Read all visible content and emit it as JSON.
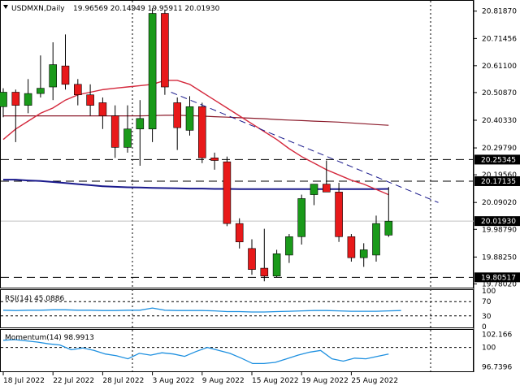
{
  "header": {
    "symbol": "USDMXN,Daily",
    "ohlc": "19.96569 20.14949 19.95911 20.01930"
  },
  "rsi_label": "RSI(14) 45.0886",
  "momentum_label": "Momentum(14) 98.9913",
  "colors": {
    "bull": "#1a9a1a",
    "bear": "#e8191a",
    "ma_fast": "#d4283c",
    "ma_mid": "#1a1a8c",
    "ma_slow": "#8b1a2a",
    "osc": "#1e90e0",
    "trend": "#1a1a8c"
  },
  "chart_data": [
    {
      "type": "candlestick",
      "title": "USDMXN,Daily",
      "price_ticks": [
        "20.81870",
        "20.71456",
        "20.61100",
        "20.50870",
        "20.40330",
        "20.29790",
        "20.19560",
        "20.09020",
        "19.98790",
        "19.88250",
        "19.78020"
      ],
      "x_labels": [
        "18 Jul 2022",
        "22 Jul 2022",
        "28 Jul 2022",
        "3 Aug 2022",
        "9 Aug 2022",
        "15 Aug 2022",
        "19 Aug 2022",
        "25 Aug 2022"
      ],
      "ylim": [
        19.766,
        20.858
      ],
      "candles": [
        {
          "o": 20.455,
          "h": 20.525,
          "l": 20.415,
          "c": 20.51
        },
        {
          "o": 20.51,
          "h": 20.52,
          "l": 20.32,
          "c": 20.46
        },
        {
          "o": 20.46,
          "h": 20.56,
          "l": 20.43,
          "c": 20.505
        },
        {
          "o": 20.505,
          "h": 20.65,
          "l": 20.49,
          "c": 20.525
        },
        {
          "o": 20.53,
          "h": 20.7,
          "l": 20.48,
          "c": 20.615
        },
        {
          "o": 20.61,
          "h": 20.73,
          "l": 20.52,
          "c": 20.54
        },
        {
          "o": 20.54,
          "h": 20.56,
          "l": 20.46,
          "c": 20.5
        },
        {
          "o": 20.5,
          "h": 20.54,
          "l": 20.42,
          "c": 20.46
        },
        {
          "o": 20.47,
          "h": 20.49,
          "l": 20.37,
          "c": 20.42
        },
        {
          "o": 20.42,
          "h": 20.46,
          "l": 20.26,
          "c": 20.3
        },
        {
          "o": 20.3,
          "h": 20.46,
          "l": 20.28,
          "c": 20.37
        },
        {
          "o": 20.37,
          "h": 20.48,
          "l": 20.23,
          "c": 20.41
        },
        {
          "o": 20.37,
          "h": 20.83,
          "l": 20.32,
          "c": 20.81
        },
        {
          "o": 20.81,
          "h": 20.825,
          "l": 20.5,
          "c": 20.53
        },
        {
          "o": 20.47,
          "h": 20.49,
          "l": 20.29,
          "c": 20.375
        },
        {
          "o": 20.365,
          "h": 20.495,
          "l": 20.345,
          "c": 20.455
        },
        {
          "o": 20.455,
          "h": 20.47,
          "l": 20.24,
          "c": 20.26
        },
        {
          "o": 20.26,
          "h": 20.28,
          "l": 20.215,
          "c": 20.25
        },
        {
          "o": 20.245,
          "h": 20.265,
          "l": 20.0,
          "c": 20.01
        },
        {
          "o": 20.01,
          "h": 20.03,
          "l": 19.915,
          "c": 19.94
        },
        {
          "o": 19.915,
          "h": 19.95,
          "l": 19.815,
          "c": 19.835
        },
        {
          "o": 19.84,
          "h": 19.99,
          "l": 19.79,
          "c": 19.81
        },
        {
          "o": 19.81,
          "h": 19.91,
          "l": 19.805,
          "c": 19.895
        },
        {
          "o": 19.89,
          "h": 19.97,
          "l": 19.86,
          "c": 19.96
        },
        {
          "o": 19.96,
          "h": 20.12,
          "l": 19.93,
          "c": 20.105
        },
        {
          "o": 20.12,
          "h": 20.16,
          "l": 20.08,
          "c": 20.16
        },
        {
          "o": 20.16,
          "h": 20.25,
          "l": 20.14,
          "c": 20.13
        },
        {
          "o": 20.13,
          "h": 20.165,
          "l": 19.94,
          "c": 19.96
        },
        {
          "o": 19.96,
          "h": 19.97,
          "l": 19.865,
          "c": 19.88
        },
        {
          "o": 19.88,
          "h": 19.935,
          "l": 19.845,
          "c": 19.91
        },
        {
          "o": 19.89,
          "h": 20.04,
          "l": 19.865,
          "c": 20.01
        },
        {
          "o": 19.966,
          "h": 20.149,
          "l": 19.959,
          "c": 20.019
        }
      ],
      "sma_fast": [
        20.33,
        20.37,
        20.4,
        20.43,
        20.45,
        20.48,
        20.5,
        20.51,
        20.52,
        20.525,
        20.53,
        20.535,
        20.54,
        20.555,
        20.555,
        20.54,
        20.51,
        20.48,
        20.45,
        20.42,
        20.39,
        20.36,
        20.33,
        20.295,
        20.265,
        20.24,
        20.215,
        20.195,
        20.175,
        20.16,
        20.14,
        20.12
      ],
      "sma_mid": [
        20.177,
        20.177,
        20.174,
        20.172,
        20.168,
        20.164,
        20.16,
        20.156,
        20.152,
        20.15,
        20.148,
        20.147,
        20.146,
        20.145,
        20.144,
        20.143,
        20.143,
        20.142,
        20.142,
        20.141,
        20.141,
        20.141,
        20.141,
        20.141,
        20.141,
        20.141,
        20.141,
        20.141,
        20.141,
        20.141,
        20.141,
        20.142
      ],
      "sma_slow": [
        20.42,
        20.42,
        20.42,
        20.42,
        20.42,
        20.42,
        20.42,
        20.42,
        20.42,
        20.42,
        20.42,
        20.42,
        20.421,
        20.422,
        20.422,
        20.421,
        20.419,
        20.417,
        20.415,
        20.413,
        20.411,
        20.409,
        20.406,
        20.404,
        20.402,
        20.4,
        20.398,
        20.396,
        20.393,
        20.39,
        20.387,
        20.384
      ],
      "levels": [
        {
          "value": 20.25345,
          "label": "20.25345"
        },
        {
          "value": 20.17135,
          "label": "20.17135"
        },
        {
          "value": 19.80517,
          "label": "19.80517"
        }
      ],
      "current_price": {
        "value": 20.0193,
        "label": "20.01930"
      },
      "trendline": [
        {
          "i": 13.5,
          "v": 20.51
        },
        {
          "i": 35,
          "v": 20.09
        }
      ]
    },
    {
      "type": "line",
      "title": "RSI(14) 45.0886",
      "ylim": [
        0,
        100
      ],
      "y_ticks": [
        "100",
        "70",
        "30",
        "0"
      ],
      "levels": [
        70,
        30
      ],
      "values": [
        46,
        45,
        46,
        46,
        47,
        47,
        46,
        46,
        45,
        45,
        46,
        46,
        52,
        46,
        45,
        45,
        45,
        44,
        42,
        42,
        41,
        41,
        42,
        43,
        44,
        45,
        45,
        44,
        43,
        43,
        43,
        44,
        45
      ]
    },
    {
      "type": "line",
      "title": "Momentum(14) 98.9913",
      "ylim": [
        96.0,
        102.8
      ],
      "y_ticks": [
        "102.166",
        "100",
        "96.7396"
      ],
      "levels": [
        100
      ],
      "values": [
        101.2,
        101.3,
        101.1,
        100.9,
        100.6,
        100.4,
        99.6,
        99.9,
        99.5,
        98.9,
        98.6,
        98.1,
        99.0,
        98.7,
        99.1,
        98.9,
        98.5,
        99.3,
        100.0,
        99.5,
        99.0,
        98.2,
        97.3,
        97.3,
        97.5,
        98.1,
        98.7,
        99.2,
        99.5,
        98.1,
        97.7,
        98.2,
        98.1,
        98.5,
        98.9
      ]
    }
  ]
}
